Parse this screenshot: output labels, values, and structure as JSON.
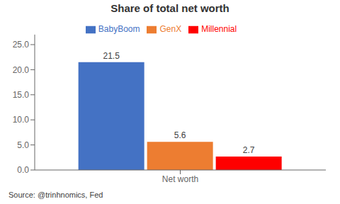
{
  "chart_data": {
    "type": "bar",
    "title": "Share of total net worth",
    "categories": [
      "Net worth"
    ],
    "series": [
      {
        "name": "BabyBoom",
        "color": "#4472C4",
        "values": [
          21.5
        ]
      },
      {
        "name": "GenX",
        "color": "#ED7D31",
        "values": [
          5.6
        ]
      },
      {
        "name": "Millennial",
        "color": "#FF0000",
        "values": [
          2.7
        ]
      }
    ],
    "ylim": [
      0,
      27
    ],
    "yticks": [
      {
        "value": 0,
        "label": "0.0"
      },
      {
        "value": 5,
        "label": "5.0"
      },
      {
        "value": 10,
        "label": "10.0"
      },
      {
        "value": 15,
        "label": "15.0"
      },
      {
        "value": 20,
        "label": "20.0"
      },
      {
        "value": 25,
        "label": "25.0"
      }
    ],
    "grid": false,
    "legend": "top",
    "data_labels": true,
    "annotations": [
      "Source: @trinhnomics, Fed"
    ]
  }
}
